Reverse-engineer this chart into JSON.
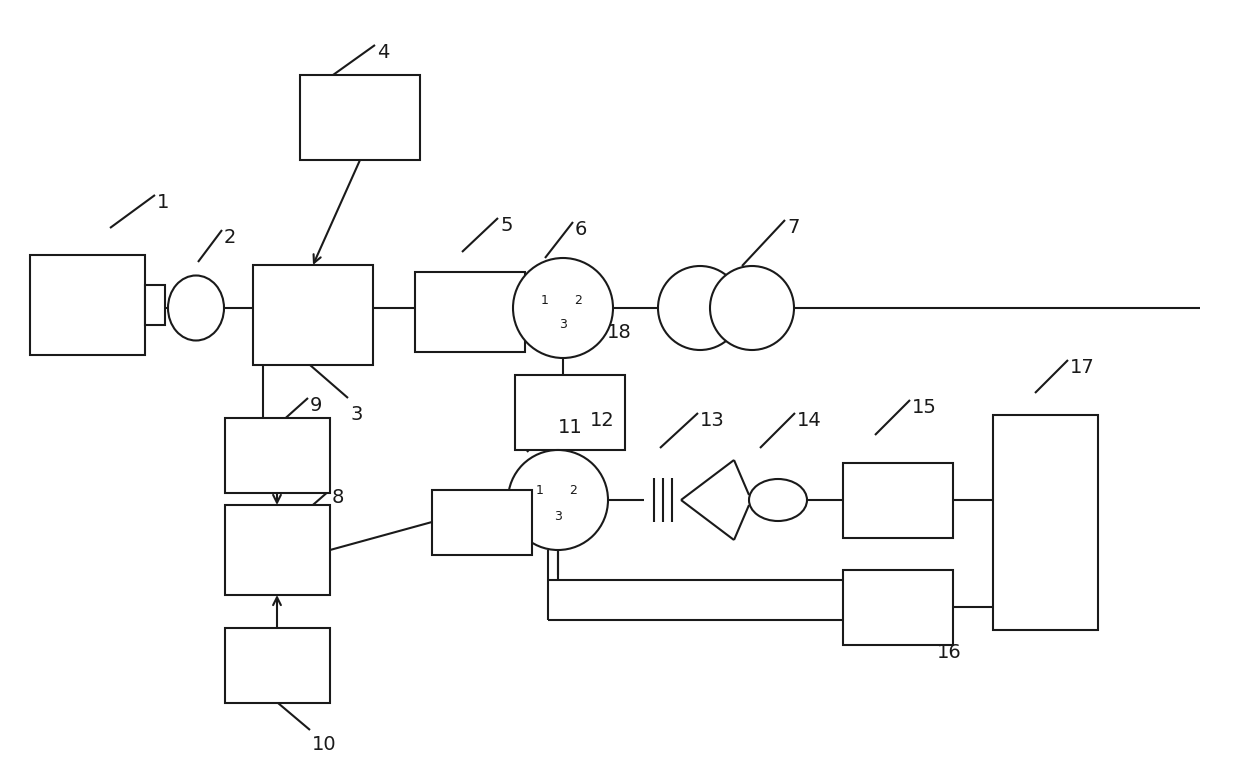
{
  "bg": "#ffffff",
  "lc": "#1a1a1a",
  "lw": 1.5,
  "fig_w": 12.4,
  "fig_h": 7.8
}
